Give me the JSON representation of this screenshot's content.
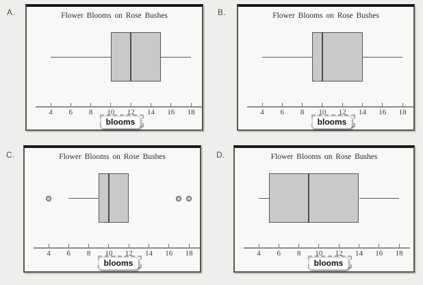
{
  "colors": {
    "page_bg": "#efeeec",
    "panel_bg": "#f8f8f6",
    "panel_top_border": "#181818",
    "box_fill": "#c9c9c7",
    "box_border": "#565656",
    "median_line": "#4c4c4c",
    "outlier_fill": "#c2c2c0",
    "chip_bg": "#ffffff"
  },
  "chart_data": [
    {
      "panel": "A.",
      "type": "boxplot",
      "orientation": "horizontal",
      "title": "Flower Blooms on Rose Bushes",
      "xlabel": "blooms",
      "ticks": [
        4,
        6,
        8,
        10,
        12,
        14,
        16,
        18
      ],
      "xlim": [
        3,
        19
      ],
      "whisker_low": 4,
      "q1": 10,
      "median": 12,
      "q3": 15,
      "whisker_high": 18,
      "outliers": []
    },
    {
      "panel": "B.",
      "type": "boxplot",
      "orientation": "horizontal",
      "title": "Flower Blooms on Rose Bushes",
      "xlabel": "blooms",
      "ticks": [
        4,
        6,
        8,
        10,
        12,
        14,
        16,
        18
      ],
      "xlim": [
        3,
        19
      ],
      "whisker_low": 4,
      "q1": 9,
      "median": 10,
      "q3": 14,
      "whisker_high": 18,
      "outliers": []
    },
    {
      "panel": "C.",
      "type": "boxplot",
      "orientation": "horizontal",
      "title": "Flower Blooms on Rose Bushes",
      "xlabel": "blooms",
      "ticks": [
        4,
        6,
        8,
        10,
        12,
        14,
        16,
        18
      ],
      "xlim": [
        3,
        19
      ],
      "whisker_low": 6,
      "q1": 9,
      "median": 10,
      "q3": 12,
      "whisker_high": 12,
      "outliers": [
        4,
        17,
        18
      ]
    },
    {
      "panel": "D.",
      "type": "boxplot",
      "orientation": "horizontal",
      "title": "Flower Blooms on Rose Bushes",
      "xlabel": "blooms",
      "ticks": [
        4,
        6,
        8,
        10,
        12,
        14,
        16,
        18
      ],
      "xlim": [
        3,
        19
      ],
      "whisker_low": 4,
      "q1": 5,
      "median": 9,
      "q3": 14,
      "whisker_high": 18,
      "outliers": []
    }
  ]
}
